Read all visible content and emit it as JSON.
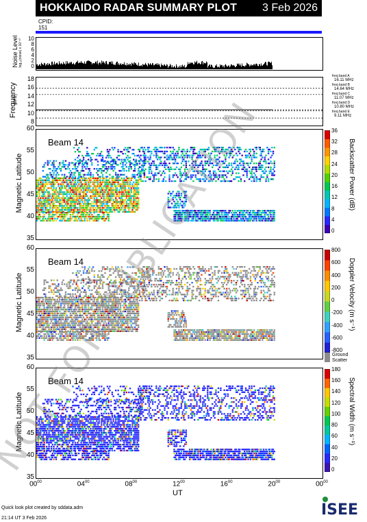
{
  "header": {
    "title": "HOKKAIDO RADAR SUMMARY PLOT",
    "date": "3 Feb 2026",
    "cpid_label": "CPID:",
    "cpid_value": "151"
  },
  "colors": {
    "cpid_bar": "#1a1aff",
    "ground_scatter": "#8c8c8c"
  },
  "noise": {
    "ylabel": "Noise Level",
    "ylabel_sub": "log₁₀(noise) x 10⁻¹⁰",
    "ticks": [
      "10",
      "8",
      "6",
      "4",
      "2",
      "0"
    ]
  },
  "freq": {
    "ylabel": "Frequency",
    "ylabel_sub": "(MHz)",
    "ticks": [
      "18",
      "16",
      "14",
      "12",
      "10",
      "8"
    ],
    "bands": [
      {
        "label": "freq band A",
        "value": "16.11 MHz"
      },
      {
        "label": "freq band B",
        "value": "14.64 MHz"
      },
      {
        "label": "freq band C",
        "value": "11.07 MHz"
      },
      {
        "label": "freq band D",
        "value": "10.80 MHz"
      },
      {
        "label": "freq band E",
        "value": "9.11 MHz"
      }
    ]
  },
  "panels": [
    {
      "beam": "Beam 14",
      "ylabel": "Magnetic Latitude",
      "yticks": [
        "60",
        "55",
        "50",
        "45",
        "40",
        "35"
      ],
      "cb_title": "Backscatter Power (dB)",
      "cb_ticks": [
        "36",
        "32",
        "28",
        "24",
        "20",
        "16",
        "12",
        "8",
        "4",
        "0"
      ]
    },
    {
      "beam": "Beam 14",
      "ylabel": "Magnetic Latitude",
      "yticks": [
        "60",
        "55",
        "50",
        "45",
        "40",
        "35"
      ],
      "cb_title": "Doppler Velocity (m s⁻¹)",
      "cb_ticks": [
        "800",
        "600",
        "400",
        "200",
        "0",
        "-200",
        "-400",
        "-600",
        "-800"
      ],
      "ground_label": "Ground",
      "scatter_label": "Scatter"
    },
    {
      "beam": "Beam 14",
      "ylabel": "Magnetic Latitude",
      "yticks": [
        "60",
        "55",
        "50",
        "45",
        "40",
        "35"
      ],
      "cb_title": "Spectral Width (m s⁻¹)",
      "cb_ticks": [
        "180",
        "160",
        "140",
        "120",
        "100",
        "80",
        "60",
        "40",
        "20",
        "0"
      ]
    }
  ],
  "xaxis": {
    "label": "UT",
    "ticks": [
      {
        "h": "00",
        "m": "00"
      },
      {
        "h": "04",
        "m": "00"
      },
      {
        "h": "08",
        "m": "00"
      },
      {
        "h": "12",
        "m": "00"
      },
      {
        "h": "16",
        "m": "00"
      },
      {
        "h": "20",
        "m": "00"
      },
      {
        "h": "00",
        "m": "00"
      }
    ]
  },
  "footer": {
    "line1": "Quick look plot created by sddata.adm",
    "line2": "21:14 UT  3 Feb 2026",
    "logo": "ISEE"
  },
  "watermark": "NOT FOR PUBLICATION",
  "chart_data": [
    {
      "type": "area",
      "title": "Noise Level",
      "ylim": [
        0,
        10
      ],
      "xlim_hours": [
        0,
        24
      ],
      "data_until_hour": 19.8
    },
    {
      "type": "line",
      "title": "Frequency",
      "ylim": [
        8,
        18
      ],
      "bands_mhz": [
        16.11,
        14.64,
        11.07,
        10.8,
        9.11
      ]
    },
    {
      "type": "heatmap",
      "title": "Backscatter Power (dB)",
      "ylim": [
        35,
        60
      ],
      "zlim": [
        0,
        36
      ],
      "xlim_hours": [
        0,
        24
      ]
    },
    {
      "type": "heatmap",
      "title": "Doppler Velocity (m s⁻¹)",
      "ylim": [
        35,
        60
      ],
      "zlim": [
        -800,
        800
      ],
      "xlim_hours": [
        0,
        24
      ]
    },
    {
      "type": "heatmap",
      "title": "Spectral Width (m s⁻¹)",
      "ylim": [
        35,
        60
      ],
      "zlim": [
        0,
        180
      ],
      "xlim_hours": [
        0,
        24
      ]
    }
  ]
}
